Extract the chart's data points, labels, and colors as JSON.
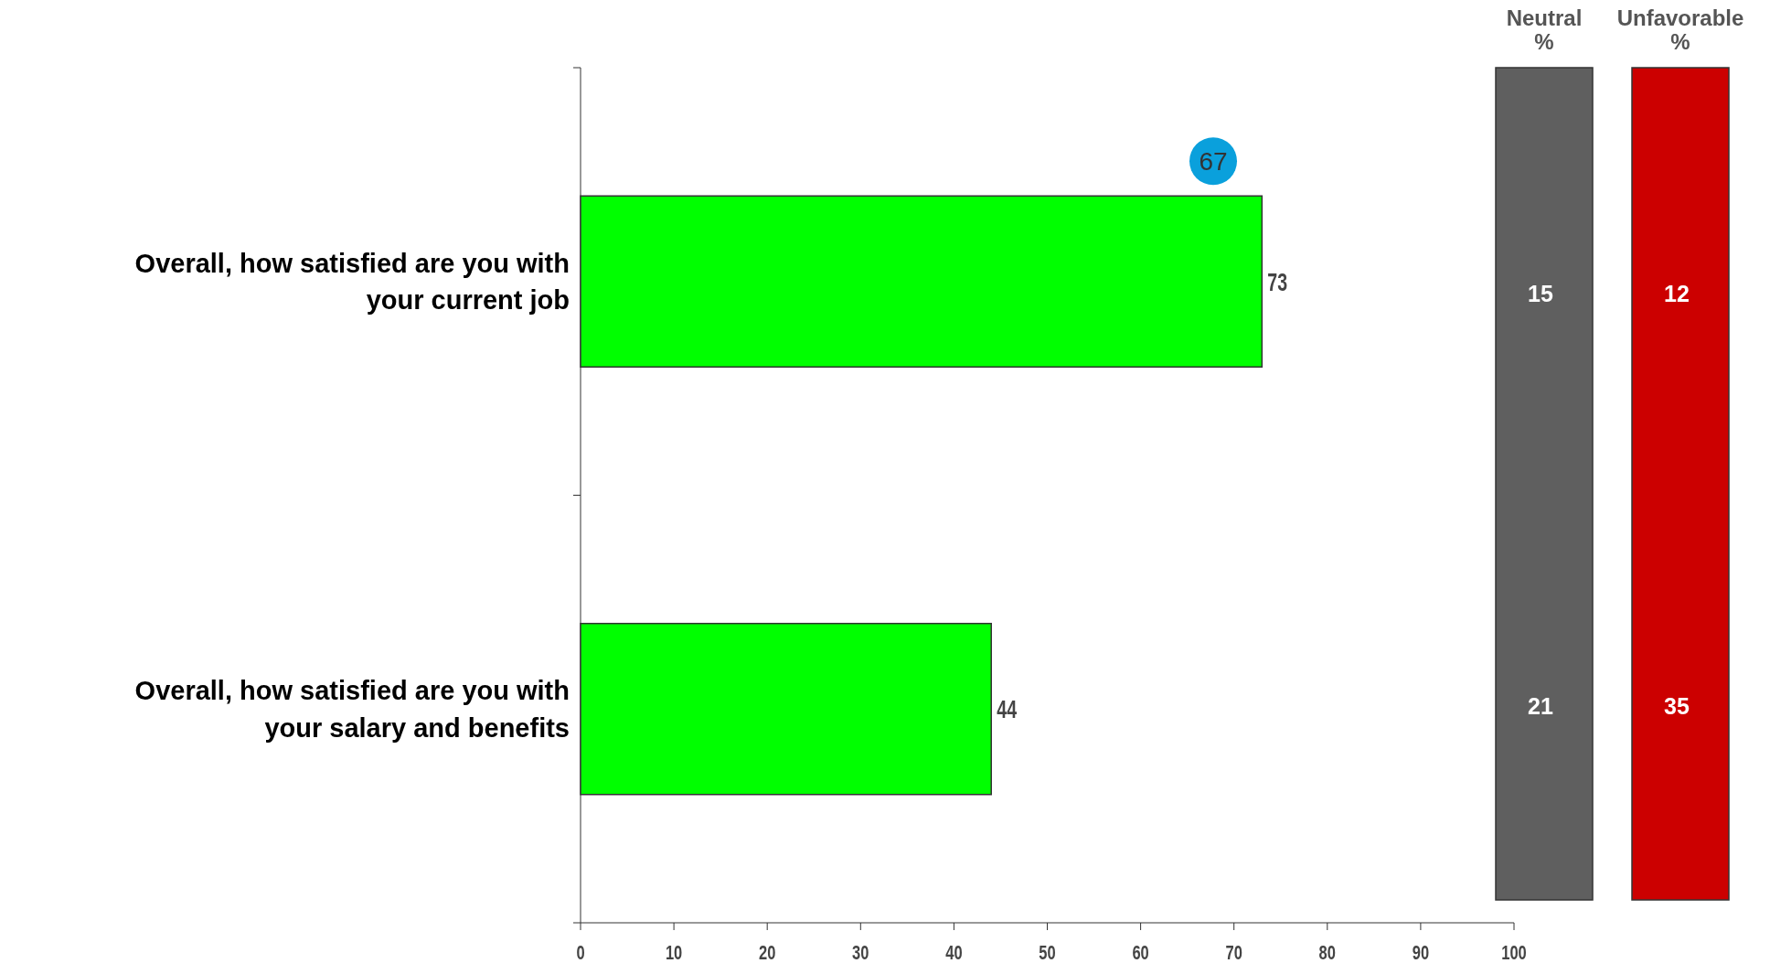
{
  "chart_data": [
    {
      "type": "bar",
      "orientation": "horizontal",
      "categories": [
        "Overall, how satisfied are you with your current job",
        "Overall, how satisfied are you with your salary and benefits"
      ],
      "values": [
        73,
        44
      ],
      "color": "#00ff00",
      "xlim": [
        0,
        100
      ],
      "xticks": [
        0,
        10,
        20,
        30,
        40,
        50,
        60,
        70,
        80,
        90,
        100
      ],
      "data_labels": true,
      "annotations": [
        "67"
      ]
    },
    {
      "type": "other",
      "title": "Neutral %",
      "annotations": [
        "15",
        "21"
      ],
      "color": "#5f5f5f"
    },
    {
      "type": "other",
      "title": "Unfavorable %",
      "annotations": [
        "12",
        "35"
      ],
      "color": "#cc0000"
    }
  ]
}
